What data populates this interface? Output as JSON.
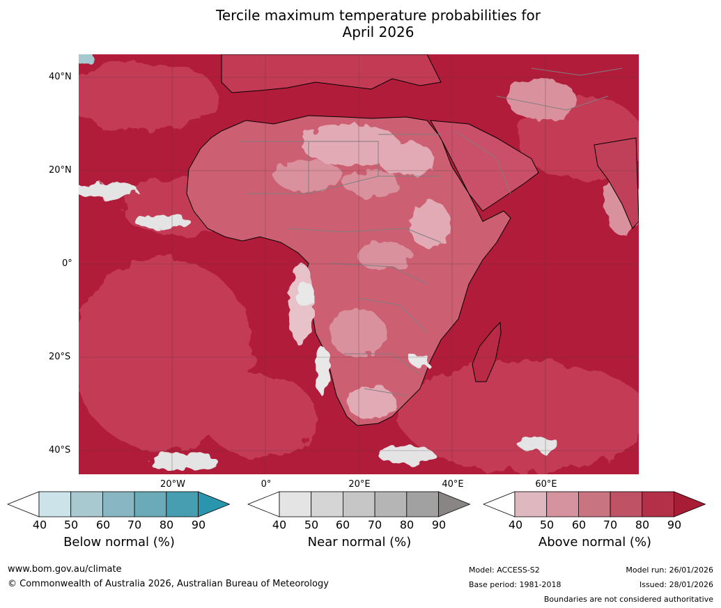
{
  "title": {
    "line1": "Tercile maximum temperature probabilities for",
    "line2": "April 2026"
  },
  "map": {
    "lat_labels": [
      "40°N",
      "20°N",
      "0°",
      "20°S",
      "40°S"
    ],
    "lon_labels": [
      "20°W",
      "0°",
      "20°E",
      "40°E",
      "60°E"
    ],
    "colors": {
      "above_dominant": "#b11c3a",
      "above_mid": "#c9566b",
      "above_light": "#dfa5b0",
      "near_light": "#e4e4e4",
      "below_light": "#a6c8d0",
      "border_line": "#7f7f7f",
      "coast_line": "#000000"
    }
  },
  "colorbars": [
    {
      "name": "below",
      "title": "Below normal (%)",
      "ticks": [
        "40",
        "50",
        "60",
        "70",
        "80",
        "90"
      ],
      "colors": [
        "#ffffff",
        "#cde3ea",
        "#a9c9d1",
        "#88b7c3",
        "#6aaab9",
        "#469eb0",
        "#2a96ad"
      ]
    },
    {
      "name": "near",
      "title": "Near normal (%)",
      "ticks": [
        "40",
        "50",
        "60",
        "70",
        "80",
        "90"
      ],
      "colors": [
        "#ffffff",
        "#e4e4e4",
        "#d5d5d5",
        "#c6c6c6",
        "#b5b5b5",
        "#a1a1a1",
        "#8a8585"
      ]
    },
    {
      "name": "above",
      "title": "Above normal (%)",
      "ticks": [
        "40",
        "50",
        "60",
        "70",
        "80",
        "90"
      ],
      "colors": [
        "#ffffff",
        "#dfb7bf",
        "#d4939e",
        "#c97581",
        "#bf5265",
        "#b43048",
        "#a81c35"
      ]
    }
  ],
  "footer": {
    "website": "www.bom.gov.au/climate",
    "copyright": "© Commonwealth of Australia 2026, Australian Bureau of Meteorology",
    "model": "Model: ACCESS-S2",
    "base_period": "Base period: 1981-2018",
    "model_run": "Model run: 26/01/2026",
    "issued": "Issued: 28/01/2026",
    "disclaimer": "Boundaries are not considered authoritative"
  }
}
